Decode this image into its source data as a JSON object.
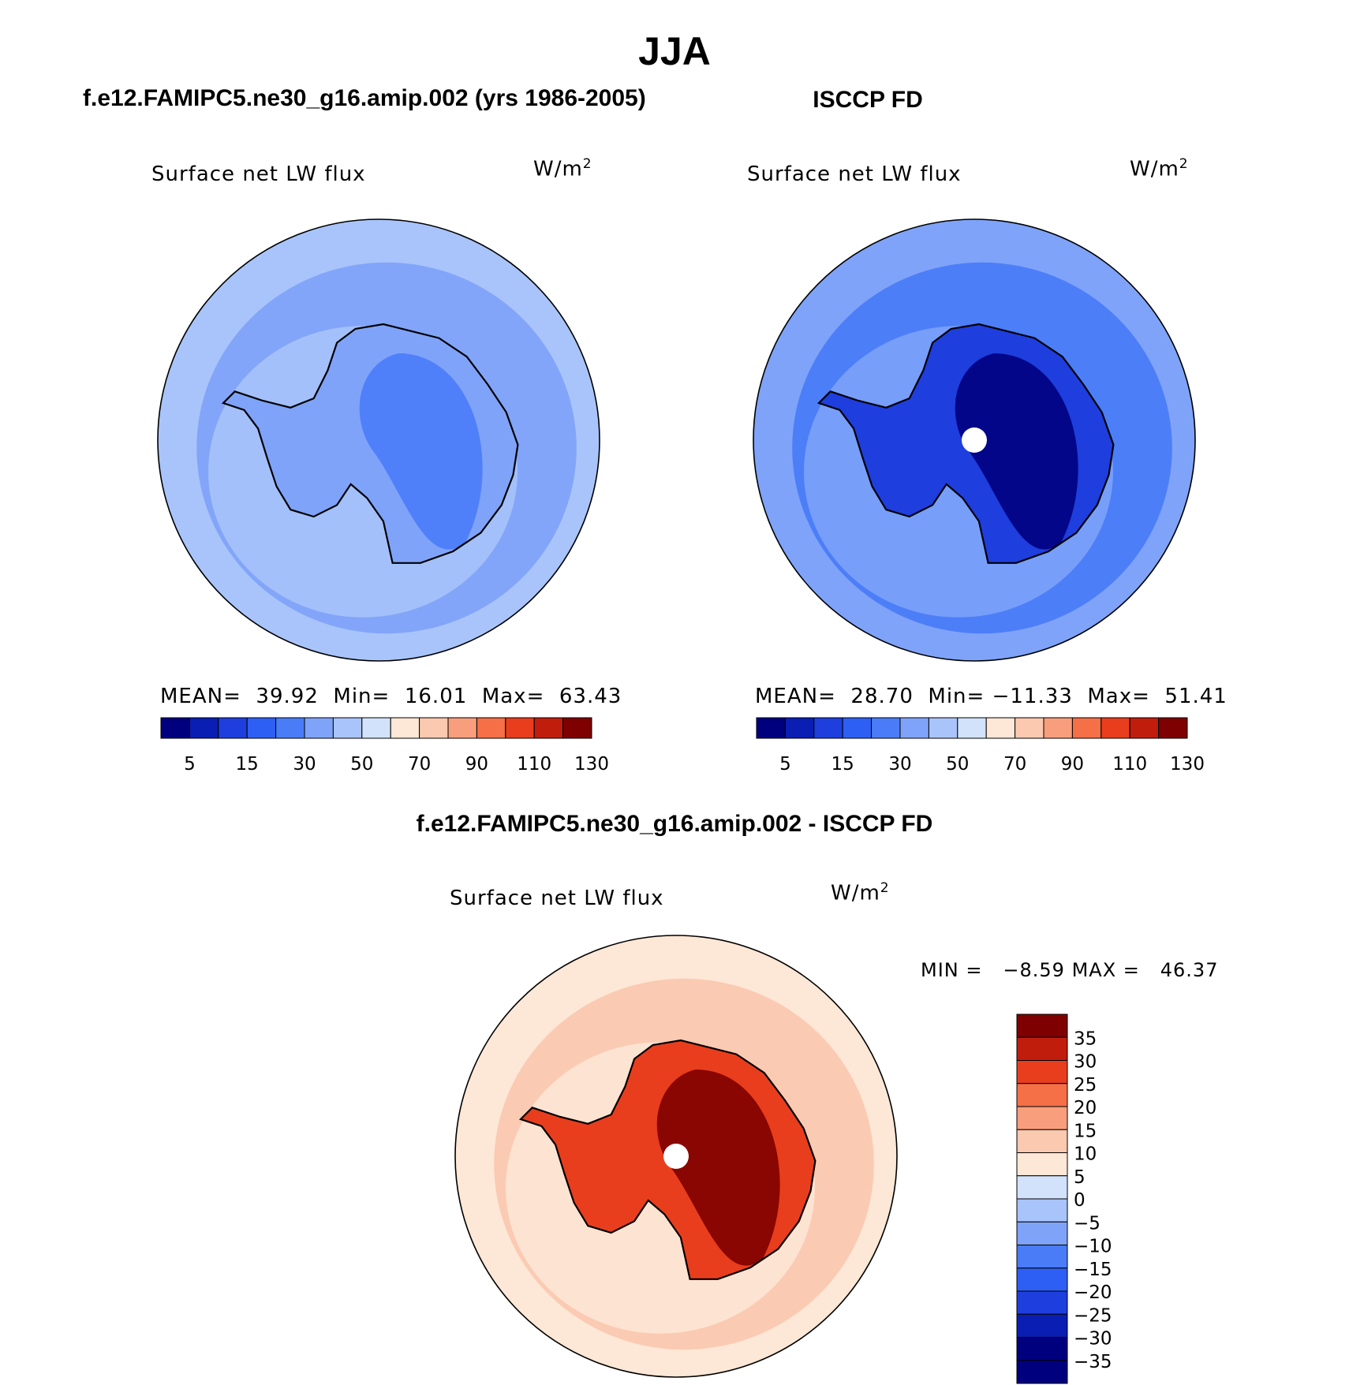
{
  "figure": {
    "title": "JJA",
    "diff_title": "f.e12.FAMIPC5.ne30_g16.amip.002 - ISCCP FD"
  },
  "colors": {
    "abs_palette": [
      "#00007f",
      "#0a1eb4",
      "#1e3ede",
      "#2e5ff5",
      "#4a7cf8",
      "#7fa3f9",
      "#a9c4fa",
      "#d2e2fb",
      "#fde7d6",
      "#fbc8b0",
      "#f99e7d",
      "#f56f47",
      "#e83e1d",
      "#c11d0d",
      "#7f0000"
    ],
    "diff_palette": [
      "#00007f",
      "#0a1eb4",
      "#1e3ede",
      "#2e5ff5",
      "#4a7cf8",
      "#7fa3f9",
      "#a9c4fa",
      "#d2e2fb",
      "#fde7d6",
      "#fbc8b0",
      "#f99e7d",
      "#f56f47",
      "#e83e1d",
      "#c11d0d",
      "#7f0000"
    ]
  },
  "chart_data": [
    {
      "type": "heatmap",
      "panel_title": "f.e12.FAMIPC5.ne30_g16.amip.002 (yrs 1986-2005)",
      "variable": "Surface net LW flux",
      "units": "W/m",
      "units_exp": "2",
      "stats": {
        "mean_label": "MEAN=",
        "mean": "39.92",
        "min_label": "Min=",
        "min": "16.01",
        "max_label": "Max=",
        "max": "63.43"
      },
      "colorbar_ticks": [
        "5",
        "15",
        "30",
        "50",
        "70",
        "90",
        "110",
        "130"
      ],
      "field": {
        "background_level": 6,
        "mid_level": 5,
        "inner_level": 5,
        "core_level": 4,
        "pole_hole": false
      }
    },
    {
      "type": "heatmap",
      "panel_title": "ISCCP FD",
      "variable": "Surface net LW flux",
      "units": "W/m",
      "units_exp": "2",
      "stats": {
        "mean_label": "MEAN=",
        "mean": "28.70",
        "min_label": "Min=",
        "min": "−11.33",
        "max_label": "Max=",
        "max": "51.41"
      },
      "colorbar_ticks": [
        "5",
        "15",
        "30",
        "50",
        "70",
        "90",
        "110",
        "130"
      ],
      "field": {
        "background_level": 5,
        "mid_level": 4,
        "inner_level": 2,
        "core_level": 0,
        "pole_hole": true
      }
    },
    {
      "type": "heatmap",
      "panel_title": "f.e12.FAMIPC5.ne30_g16.amip.002 - ISCCP FD",
      "variable": "Surface net LW flux",
      "units": "W/m",
      "units_exp": "2",
      "stats": {
        "min_label": "MIN =",
        "min": "−8.59",
        "max_label": "MAX =",
        "max": "46.37"
      },
      "colorbar_ticks": [
        "35",
        "30",
        "25",
        "20",
        "15",
        "10",
        "5",
        "0",
        "−5",
        "−10",
        "−15",
        "−20",
        "−25",
        "−30",
        "−35"
      ],
      "field": {
        "background_level": 8,
        "mid_level": 9,
        "inner_level": 12,
        "core_level": 14,
        "pole_hole": true
      }
    }
  ]
}
